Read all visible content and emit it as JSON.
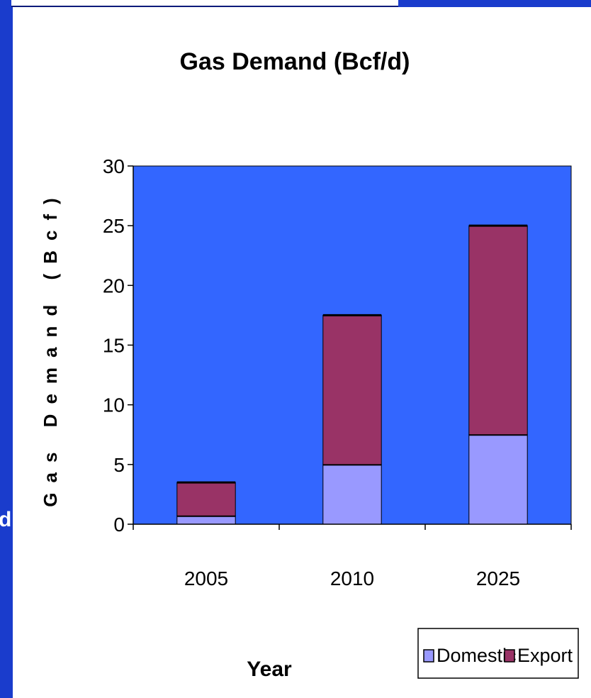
{
  "side_text": "d",
  "colors": {
    "slide_background": "#1a3ccc",
    "plot_area": "#3366ff",
    "domestic": "#9999ff",
    "export": "#993366"
  },
  "chart_data": {
    "type": "bar",
    "stacked": true,
    "title": "Gas Demand (Bcf/d)",
    "xlabel": "Year",
    "ylabel": "Gas Demand (Bcf)",
    "categories": [
      "2005",
      "2010",
      "2025"
    ],
    "series": [
      {
        "name": "Domestic",
        "values": [
          0.7,
          5.0,
          7.5
        ],
        "color": "#9999ff"
      },
      {
        "name": "Export",
        "values": [
          2.8,
          12.5,
          17.5
        ],
        "color": "#993366"
      }
    ],
    "ylim": [
      0,
      30
    ],
    "yticks": [
      "0",
      "5",
      "10",
      "15",
      "20",
      "25",
      "30"
    ],
    "grid": false,
    "legend_position": "bottom-right"
  }
}
